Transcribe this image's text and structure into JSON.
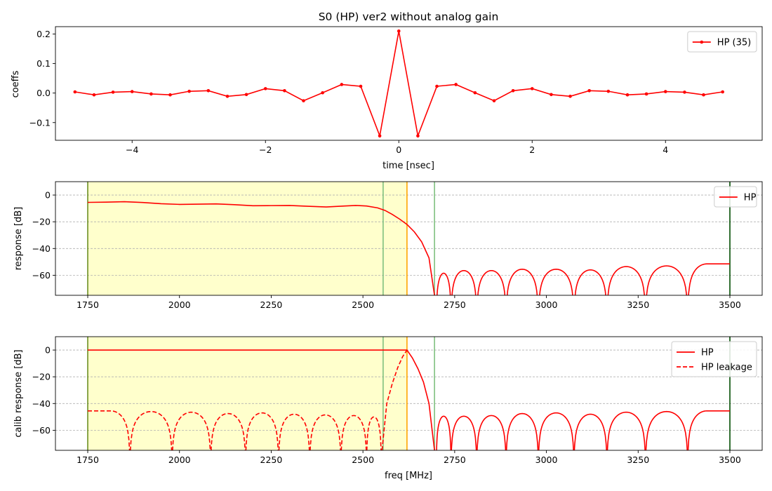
{
  "figure": {
    "title": "S0 (HP)   ver2   without analog gain"
  },
  "chart_data": [
    {
      "type": "line",
      "panel": "coeffs",
      "xlabel": "time [nsec]",
      "ylabel": "coeffs",
      "xlim": [
        -5.15,
        5.45
      ],
      "ylim": [
        -0.16,
        0.225
      ],
      "xticks": [
        -4,
        -2,
        0,
        2,
        4
      ],
      "xtick_labels": [
        "−4",
        "−2",
        "0",
        "2",
        "4"
      ],
      "yticks": [
        -0.1,
        0.0,
        0.1,
        0.2
      ],
      "ytick_labels": [
        "−0.1",
        "0.0",
        "0.1",
        "0.2"
      ],
      "grid": false,
      "legend": "top-right",
      "series": [
        {
          "name": "HP (35)",
          "color": "#ff0000",
          "marker": "dot",
          "x": [
            -4.857,
            -4.571,
            -4.286,
            -4.0,
            -3.714,
            -3.429,
            -3.143,
            -2.857,
            -2.571,
            -2.286,
            -2.0,
            -1.714,
            -1.429,
            -1.143,
            -0.857,
            -0.571,
            -0.286,
            0.0,
            0.286,
            0.571,
            0.857,
            1.143,
            1.429,
            1.714,
            2.0,
            2.286,
            2.571,
            2.857,
            3.143,
            3.429,
            3.714,
            4.0,
            4.286,
            4.571,
            4.857
          ],
          "values": [
            0.004,
            -0.006,
            0.003,
            0.005,
            -0.003,
            -0.006,
            0.006,
            0.008,
            -0.011,
            -0.005,
            0.015,
            0.008,
            -0.026,
            0.001,
            0.029,
            0.023,
            -0.145,
            0.21,
            -0.145,
            0.023,
            0.029,
            0.001,
            -0.026,
            0.008,
            0.015,
            -0.005,
            -0.011,
            0.008,
            0.006,
            -0.006,
            -0.003,
            0.005,
            0.003,
            -0.006,
            0.004
          ]
        }
      ]
    },
    {
      "type": "line",
      "panel": "response",
      "xlabel": "",
      "ylabel": "response [dB]",
      "xlim": [
        1662,
        3588
      ],
      "ylim": [
        -75,
        10
      ],
      "xticks": [
        1750,
        2000,
        2250,
        2500,
        2750,
        3000,
        3250,
        3500
      ],
      "xtick_labels": [
        "1750",
        "2000",
        "2250",
        "2500",
        "2750",
        "3000",
        "3250",
        "3500"
      ],
      "yticks": [
        0,
        -20,
        -40,
        -60
      ],
      "ytick_labels": [
        "0",
        "−20",
        "−40",
        "−60"
      ],
      "grid": "y-dashed",
      "legend": "top-right",
      "passband_shade": {
        "from": 1750,
        "to": 2620,
        "color": "#ffffcc"
      },
      "vlines": [
        {
          "x": 1750,
          "color": "#6b8e23"
        },
        {
          "x": 2555,
          "color": "#7fc07f"
        },
        {
          "x": 2620,
          "color": "#ffa500"
        },
        {
          "x": 2695,
          "color": "#7fc07f"
        },
        {
          "x": 3500,
          "color": "#004d00"
        }
      ],
      "series": [
        {
          "name": "HP",
          "color": "#ff0000",
          "style": "solid",
          "passband": {
            "x": [
              1750,
              1800,
              1850,
              1900,
              1950,
              2000,
              2050,
              2100,
              2150,
              2200,
              2250,
              2300,
              2350,
              2400,
              2450,
              2480,
              2510,
              2540,
              2560,
              2580,
              2600,
              2620,
              2640,
              2660,
              2680,
              2695
            ],
            "values": [
              -5.5,
              -5.3,
              -5.0,
              -5.6,
              -6.5,
              -7.0,
              -6.8,
              -6.6,
              -7.2,
              -8.0,
              -7.9,
              -7.8,
              -8.4,
              -8.9,
              -8.2,
              -7.8,
              -8.2,
              -9.6,
              -11.5,
              -14.5,
              -18.0,
              -22.0,
              -27.5,
              -35.0,
              -47.0,
              -75.0
            ]
          },
          "stopband_lobes": [
            {
              "from": 2700,
              "to": 2740,
              "peak": -58.5
            },
            {
              "from": 2740,
              "to": 2810,
              "peak": -56.5
            },
            {
              "from": 2810,
              "to": 2890,
              "peak": -56.5
            },
            {
              "from": 2890,
              "to": 2978,
              "peak": -55.5
            },
            {
              "from": 2978,
              "to": 3075,
              "peak": -55.5
            },
            {
              "from": 3075,
              "to": 3165,
              "peak": -56.0
            },
            {
              "from": 3165,
              "to": 3270,
              "peak": -53.5
            },
            {
              "from": 3270,
              "to": 3385,
              "peak": -53.0
            },
            {
              "from": 3385,
              "to": 3500,
              "peak": -51.5,
              "tail": true
            }
          ]
        }
      ]
    },
    {
      "type": "line",
      "panel": "calib",
      "xlabel": "freq [MHz]",
      "ylabel": "calib response [dB]",
      "xlim": [
        1662,
        3588
      ],
      "ylim": [
        -75,
        10
      ],
      "xticks": [
        1750,
        2000,
        2250,
        2500,
        2750,
        3000,
        3250,
        3500
      ],
      "xtick_labels": [
        "1750",
        "2000",
        "2250",
        "2500",
        "2750",
        "3000",
        "3250",
        "3500"
      ],
      "yticks": [
        0,
        -20,
        -40,
        -60
      ],
      "ytick_labels": [
        "0",
        "−20",
        "−40",
        "−60"
      ],
      "grid": "y-dashed",
      "legend": "top-right",
      "passband_shade": {
        "from": 1750,
        "to": 2620,
        "color": "#ffffcc"
      },
      "vlines": [
        {
          "x": 1750,
          "color": "#6b8e23"
        },
        {
          "x": 2555,
          "color": "#7fc07f"
        },
        {
          "x": 2620,
          "color": "#ffa500"
        },
        {
          "x": 2695,
          "color": "#7fc07f"
        },
        {
          "x": 3500,
          "color": "#004d00"
        }
      ],
      "series": [
        {
          "name": "HP",
          "color": "#ff0000",
          "style": "solid",
          "passband": {
            "x": [
              1750,
              2620,
              2635,
              2650,
              2665,
              2680,
              2695
            ],
            "values": [
              0,
              0,
              -6.0,
              -14.0,
              -24.0,
              -40.0,
              -75.0
            ]
          },
          "stopband_lobes": [
            {
              "from": 2700,
              "to": 2740,
              "peak": -49.5
            },
            {
              "from": 2740,
              "to": 2810,
              "peak": -49.5
            },
            {
              "from": 2810,
              "to": 2890,
              "peak": -49.0
            },
            {
              "from": 2890,
              "to": 2978,
              "peak": -47.5
            },
            {
              "from": 2978,
              "to": 3075,
              "peak": -47.0
            },
            {
              "from": 3075,
              "to": 3165,
              "peak": -48.0
            },
            {
              "from": 3165,
              "to": 3270,
              "peak": -46.5
            },
            {
              "from": 3270,
              "to": 3385,
              "peak": -46.0
            },
            {
              "from": 3385,
              "to": 3500,
              "peak": -45.5,
              "tail": true
            }
          ]
        },
        {
          "name": "HP leakage",
          "color": "#ff0000",
          "style": "dashed",
          "lobes": [
            {
              "from": 1750,
              "to": 1865,
              "peak": -45.5,
              "head": true
            },
            {
              "from": 1865,
              "to": 1980,
              "peak": -46.0
            },
            {
              "from": 1980,
              "to": 2085,
              "peak": -46.5
            },
            {
              "from": 2085,
              "to": 2180,
              "peak": -47.5
            },
            {
              "from": 2180,
              "to": 2270,
              "peak": -47.0
            },
            {
              "from": 2270,
              "to": 2355,
              "peak": -48.0
            },
            {
              "from": 2355,
              "to": 2440,
              "peak": -48.5
            },
            {
              "from": 2440,
              "to": 2510,
              "peak": -49.0
            },
            {
              "from": 2510,
              "to": 2550,
              "peak": -50.0
            }
          ],
          "rise": {
            "x": [
              2552,
              2565,
              2580,
              2595,
              2608,
              2620
            ],
            "values": [
              -75,
              -40,
              -25,
              -13,
              -5,
              0
            ]
          }
        }
      ]
    }
  ]
}
